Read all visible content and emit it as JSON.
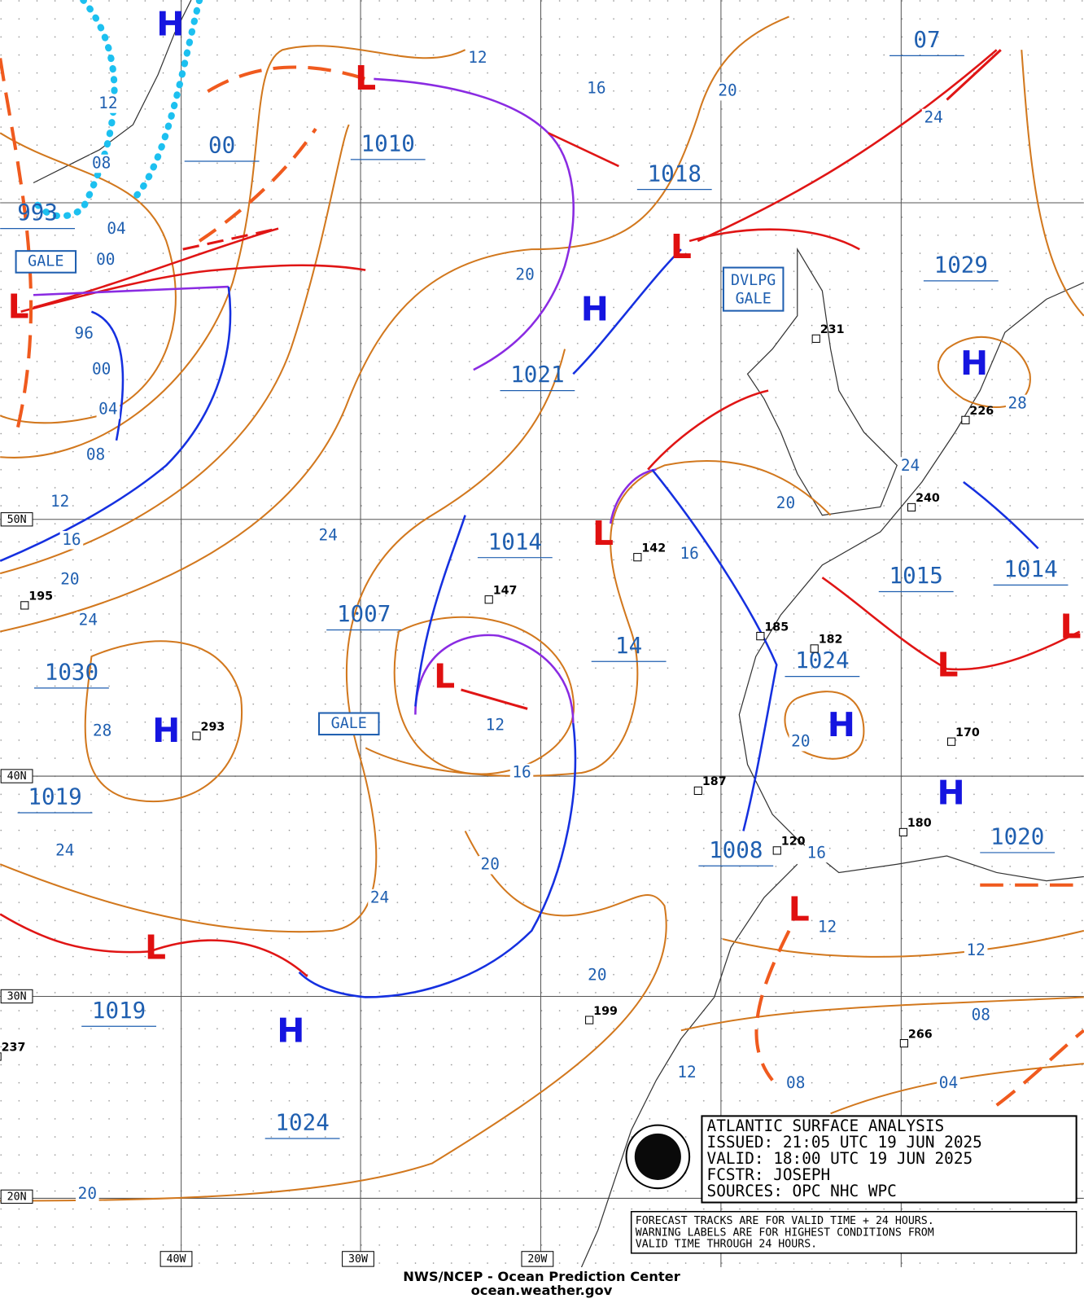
{
  "map": {
    "high_symbol": "H",
    "low_symbol": "L",
    "central_pressures": [
      "993",
      "00",
      "1010",
      "1018",
      "1029",
      "1021",
      "1014",
      "1015",
      "1014",
      "1007",
      "1030",
      "14",
      "1024",
      "1019",
      "1008",
      "1020",
      "1019",
      "1024",
      "07"
    ],
    "isobar_labels": [
      "12",
      "08",
      "04",
      "00",
      "96",
      "00",
      "04",
      "08",
      "12",
      "16",
      "20",
      "24",
      "28",
      "24",
      "24",
      "24",
      "20",
      "16",
      "12",
      "20",
      "24",
      "28",
      "24",
      "20",
      "16",
      "12",
      "16",
      "20",
      "20",
      "16",
      "12",
      "12",
      "08",
      "04",
      "08",
      "12",
      "20",
      "20"
    ],
    "warnings": [
      "GALE",
      "DVLPG GALE",
      "GALE"
    ],
    "latitude_labels": [
      "50N",
      "40N",
      "30N",
      "20N"
    ],
    "longitude_labels": [
      "40W",
      "30W",
      "20W"
    ],
    "station_pressures": [
      "231",
      "226",
      "240",
      "142",
      "147",
      "195",
      "293",
      "185",
      "182",
      "187",
      "170",
      "180",
      "120",
      "199",
      "266",
      "237"
    ],
    "info_box": [
      "ATLANTIC SURFACE ANALYSIS",
      "ISSUED:  21:05 UTC 19 JUN 2025",
      "VALID:   18:00 UTC 19 JUN 2025",
      "FCSTR:   JOSEPH",
      "SOURCES:  OPC NHC WPC"
    ],
    "notes": [
      "FORECAST TRACKS ARE FOR VALID TIME + 24 HOURS.",
      "WARNING LABELS ARE FOR HIGHEST CONDITIONS FROM",
      "VALID TIME THROUGH 24 HOURS."
    ],
    "footer": [
      "NWS/NCEP - Ocean Prediction Center",
      "ocean.weather.gov"
    ]
  }
}
